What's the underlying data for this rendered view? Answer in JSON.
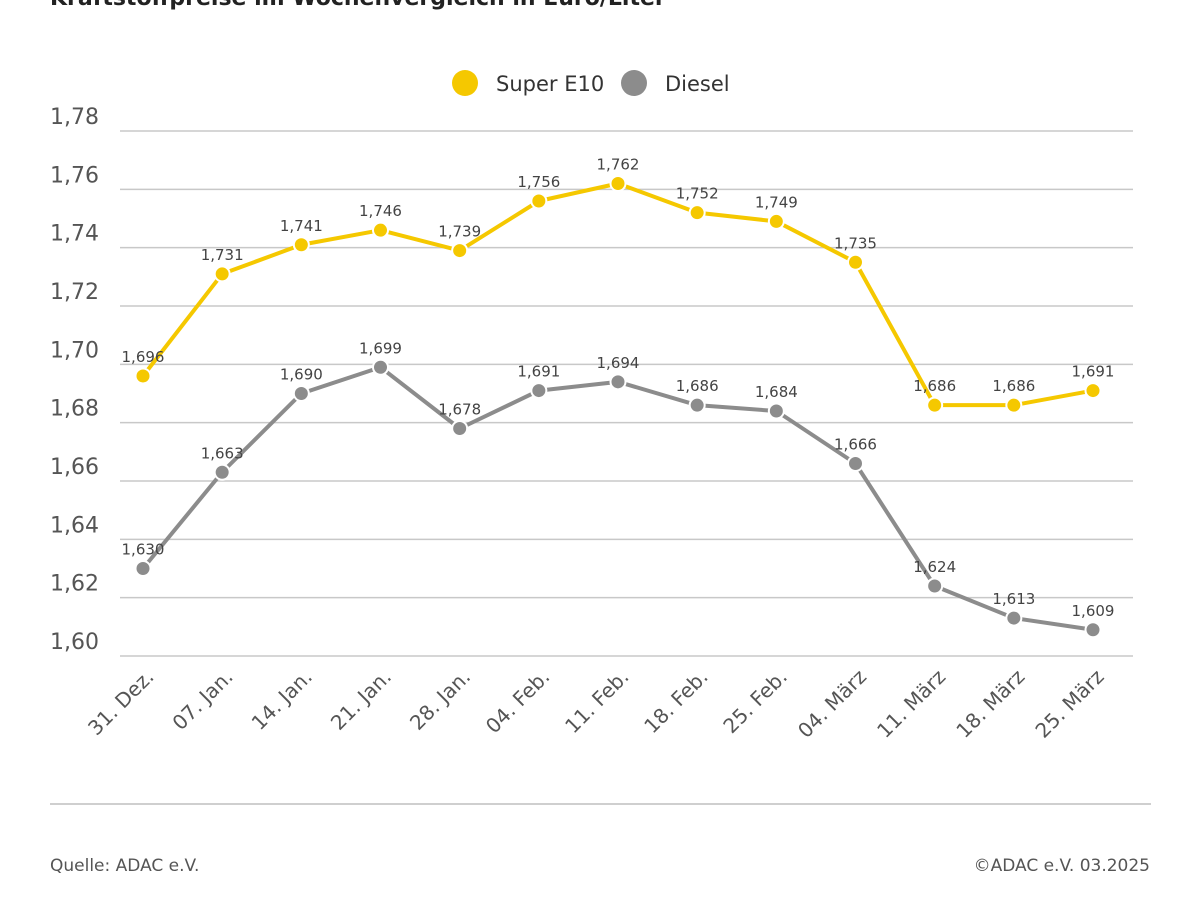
{
  "colors": {
    "super_e10": "#f5c800",
    "diesel": "#8c8c8c",
    "grid": "#c8c8c8",
    "axis_text": "#555555"
  },
  "chart_data": {
    "type": "line",
    "title": "Kraftstoffpreise im Wochenvergleich in Euro/Liter",
    "xlabel": "",
    "ylabel": "",
    "ylim": [
      1.6,
      1.78
    ],
    "yticks": [
      1.6,
      1.62,
      1.64,
      1.66,
      1.68,
      1.7,
      1.72,
      1.74,
      1.76,
      1.78
    ],
    "ytick_labels": [
      "1,60",
      "1,62",
      "1,64",
      "1,66",
      "1,68",
      "1,70",
      "1,72",
      "1,74",
      "1,76",
      "1,78"
    ],
    "grid": true,
    "legend_position": "top-center",
    "categories": [
      "31. Dez.",
      "07. Jan.",
      "14. Jan.",
      "21. Jan.",
      "28. Jan.",
      "04. Feb.",
      "11. Feb.",
      "18. Feb.",
      "25. Feb.",
      "04. März",
      "11. März",
      "18. März",
      "25. März"
    ],
    "series": [
      {
        "name": "Super E10",
        "color_key": "super_e10",
        "values": [
          1.696,
          1.731,
          1.741,
          1.746,
          1.739,
          1.756,
          1.762,
          1.752,
          1.749,
          1.735,
          1.686,
          1.686,
          1.691
        ],
        "labels": [
          "1,696",
          "1,731",
          "1,741",
          "1,746",
          "1,739",
          "1,756",
          "1,762",
          "1,752",
          "1,749",
          "1,735",
          "1,686",
          "1,686",
          "1,691"
        ]
      },
      {
        "name": "Diesel",
        "color_key": "diesel",
        "values": [
          1.63,
          1.663,
          1.69,
          1.699,
          1.678,
          1.691,
          1.694,
          1.686,
          1.684,
          1.666,
          1.624,
          1.613,
          1.609
        ],
        "labels": [
          "1,630",
          "1,663",
          "1,690",
          "1,699",
          "1,678",
          "1,691",
          "1,694",
          "1,686",
          "1,684",
          "1,666",
          "1,624",
          "1,613",
          "1,609"
        ]
      }
    ]
  },
  "footer": {
    "source": "Quelle: ADAC e.V.",
    "copyright": "©ADAC e.V. 03.2025"
  }
}
